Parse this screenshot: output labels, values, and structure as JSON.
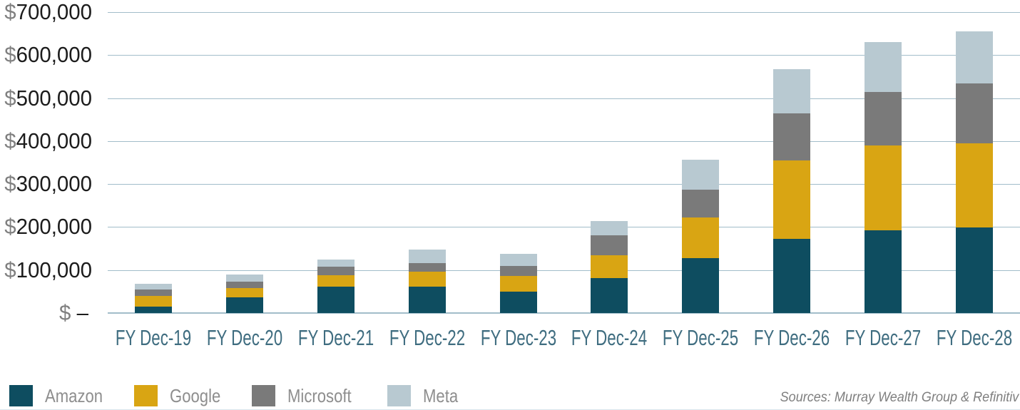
{
  "chart_data": {
    "type": "bar",
    "stacked": true,
    "title": "",
    "xlabel": "",
    "ylabel": "",
    "ylim": [
      0,
      700000
    ],
    "grid": "horizontal",
    "legend_position": "bottom-left",
    "categories": [
      "FY Dec-19",
      "FY Dec-20",
      "FY Dec-21",
      "FY Dec-22",
      "FY Dec-23",
      "FY Dec-24",
      "FY Dec-25",
      "FY Dec-26",
      "FY Dec-27",
      "FY Dec-28"
    ],
    "series": [
      {
        "name": "Amazon",
        "color": "#0e4d60",
        "values": [
          14500,
          37000,
          61000,
          62000,
          50000,
          81000,
          128000,
          172000,
          193000,
          199000
        ]
      },
      {
        "name": "Google",
        "color": "#d9a513",
        "values": [
          24500,
          21500,
          27000,
          35000,
          36000,
          53000,
          94000,
          183000,
          196000,
          195000
        ]
      },
      {
        "name": "Microsoft",
        "color": "#7a7a7a",
        "values": [
          15500,
          15000,
          20500,
          19000,
          23500,
          46000,
          65000,
          109000,
          125000,
          140000
        ]
      },
      {
        "name": "Meta",
        "color": "#b8c9d1",
        "values": [
          14000,
          15500,
          15500,
          32000,
          29000,
          34500,
          70000,
          104000,
          117000,
          121000
        ]
      }
    ],
    "y_ticks": [
      {
        "label": "$700,000",
        "value": 700000
      },
      {
        "label": "$600,000",
        "value": 600000
      },
      {
        "label": "$500,000",
        "value": 500000
      },
      {
        "label": "$400,000",
        "value": 400000
      },
      {
        "label": "$300,000",
        "value": 300000
      },
      {
        "label": "$200,000",
        "value": 200000
      },
      {
        "label": "$100,000",
        "value": 100000
      },
      {
        "label": "$ –",
        "value": 0
      }
    ],
    "source_note": "Sources: Murray Wealth Group & Refinitiv"
  },
  "colors": {
    "gridline": "#a2bdca",
    "axis_number": "#1c1c1c",
    "currency_sign": "#7f7f7f",
    "x_label": "#3f6d80",
    "legend_text": "#8e8e8e",
    "source_text": "#7f7f7f",
    "bottom_rule": "#d9e5ec",
    "background": "#ffffff"
  }
}
